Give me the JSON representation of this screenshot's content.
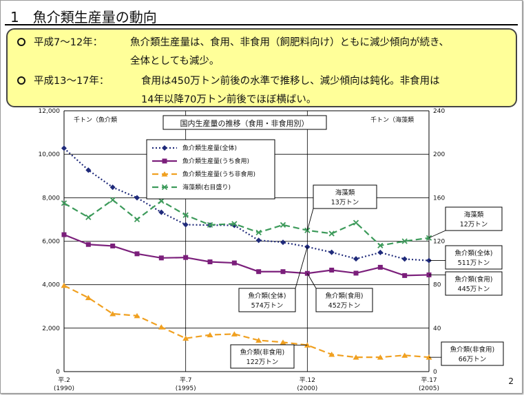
{
  "slide": {
    "title": "1　魚介類生産量の動向",
    "page_number": "2"
  },
  "summary": {
    "bullets": [
      {
        "period": "平成7～12年：",
        "line1": "魚介類生産量は、食用、非食用（飼肥料向け）ともに減少傾向が続き、",
        "line2": "全体としても減少。"
      },
      {
        "period": "平成13～17年：",
        "line1": "食用は450万トン前後の水準で推移し、減少傾向は鈍化。非食用は",
        "line2": "14年以降70万トン前後でほぼ横ばい。"
      }
    ]
  },
  "chart_data": {
    "type": "line",
    "title": "国内生産量の推移（食用・非食用別）",
    "left_axis_unit": "千トン（魚介類",
    "right_axis_unit": "千トン（海藻類",
    "x_tick_labels": [
      {
        "year": 1990,
        "line1": "平.2",
        "line2": "(1990)"
      },
      {
        "year": 1995,
        "line1": "平.7",
        "line2": "(1995)"
      },
      {
        "year": 2000,
        "line1": "平.12",
        "line2": "(2000)"
      },
      {
        "year": 2005,
        "line1": "平.17",
        "line2": "(2005)"
      }
    ],
    "xlim": [
      1990,
      2005
    ],
    "ylim_left": [
      0,
      12000
    ],
    "ylim_right": [
      0,
      240
    ],
    "left_ticks": [
      "0",
      "2,000",
      "4,000",
      "6,000",
      "8,000",
      "10,000",
      "12,000"
    ],
    "right_ticks": [
      "0",
      "40",
      "80",
      "120",
      "160",
      "200",
      "240"
    ],
    "x": [
      1990,
      1991,
      1992,
      1993,
      1994,
      1995,
      1996,
      1997,
      1998,
      1999,
      2000,
      2001,
      2002,
      2003,
      2004,
      2005
    ],
    "series": [
      {
        "name": "魚介類生産量(全体)",
        "axis": "left",
        "color": "#1f2a7a",
        "style": "dotted",
        "marker": "diamond",
        "values": [
          10280,
          9270,
          8480,
          8000,
          7330,
          6760,
          6740,
          6730,
          6040,
          5950,
          5740,
          5490,
          5190,
          5480,
          5180,
          5110
        ]
      },
      {
        "name": "魚介類生産量(うち食用)",
        "axis": "left",
        "color": "#7b1f7b",
        "style": "solid",
        "marker": "square",
        "values": [
          6300,
          5850,
          5780,
          5420,
          5230,
          5250,
          5050,
          5000,
          4600,
          4600,
          4520,
          4670,
          4530,
          4800,
          4420,
          4450
        ]
      },
      {
        "name": "魚介類生産量(うち非食用)",
        "axis": "left",
        "color": "#f0a020",
        "style": "dashed",
        "marker": "triangle",
        "values": [
          3960,
          3400,
          2660,
          2570,
          2050,
          1530,
          1690,
          1730,
          1440,
          1350,
          1220,
          790,
          660,
          660,
          750,
          660
        ]
      },
      {
        "name": "海藻類(右目盛り)",
        "axis": "right",
        "color": "#3c9a5a",
        "style": "dashed",
        "marker": "x",
        "values": [
          155,
          142,
          158,
          140,
          157,
          144,
          135,
          136,
          128,
          135,
          130,
          127,
          137,
          116,
          120,
          123
        ]
      }
    ],
    "annotations": [
      {
        "text1": "海藻類",
        "text2": "13万トン"
      },
      {
        "text1": "海藻類",
        "text2": "12万トン"
      },
      {
        "text1": "魚介類(全体)",
        "text2": "511万トン"
      },
      {
        "text1": "魚介類(食用)",
        "text2": "445万トン"
      },
      {
        "text1": "魚介類(全体)",
        "text2": "574万トン"
      },
      {
        "text1": "魚介類(食用)",
        "text2": "452万トン"
      },
      {
        "text1": "魚介類(非食用)",
        "text2": "122万トン"
      },
      {
        "text1": "魚介類(非食用)",
        "text2": "66万トン"
      }
    ]
  }
}
